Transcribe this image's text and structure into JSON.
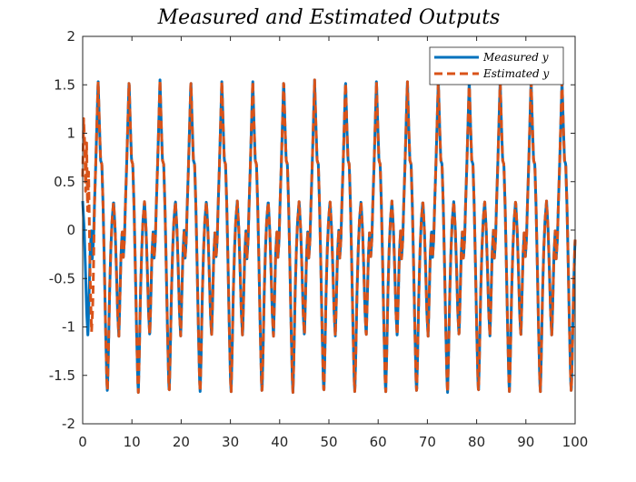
{
  "chart_data": {
    "type": "line",
    "title": "Measured and Estimated Outputs",
    "xlabel": "",
    "ylabel": "",
    "xlim": [
      0,
      100
    ],
    "ylim": [
      -2,
      2
    ],
    "xticks": [
      0,
      10,
      20,
      30,
      40,
      50,
      60,
      70,
      80,
      90,
      100
    ],
    "yticks": [
      2,
      1.5,
      1,
      0.5,
      0,
      -0.5,
      -1,
      -1.5,
      -2
    ],
    "x_tick_labels": [
      "0",
      "10",
      "20",
      "30",
      "40",
      "50",
      "60",
      "70",
      "80",
      "90",
      "100"
    ],
    "y_tick_labels": [
      "2",
      "1.5",
      "1",
      "0.5",
      "0",
      "-0.5",
      "-1",
      "-1.5",
      "-2"
    ],
    "grid": false,
    "legend_position": "top-right",
    "signal_model": {
      "period": 6.28,
      "cycle_shape": [
        [
          0.0,
          0.3
        ],
        [
          0.05,
          0.0
        ],
        [
          0.09,
          -0.4
        ],
        [
          0.13,
          -0.85
        ],
        [
          0.17,
          -1.1
        ],
        [
          0.2,
          -0.75
        ],
        [
          0.24,
          -0.25
        ],
        [
          0.28,
          0.0
        ],
        [
          0.31,
          -0.3
        ],
        [
          0.35,
          -0.1
        ],
        [
          0.38,
          0.25
        ],
        [
          0.42,
          0.65
        ],
        [
          0.46,
          1.1
        ],
        [
          0.5,
          1.55
        ],
        [
          0.54,
          1.1
        ],
        [
          0.58,
          0.72
        ],
        [
          0.62,
          0.68
        ],
        [
          0.66,
          0.25
        ],
        [
          0.7,
          -0.35
        ],
        [
          0.74,
          -1.0
        ],
        [
          0.78,
          -1.55
        ],
        [
          0.8,
          -1.68
        ],
        [
          0.83,
          -1.3
        ],
        [
          0.87,
          -0.65
        ],
        [
          0.91,
          -0.2
        ],
        [
          0.95,
          0.1
        ],
        [
          1.0,
          0.3
        ]
      ]
    },
    "series": [
      {
        "name": "Measured y",
        "color": "#0072BD",
        "line_style": "solid",
        "x_range": [
          0,
          100
        ]
      },
      {
        "name": "Estimated y",
        "color": "#D95319",
        "line_style": "dashed",
        "x_range": [
          0,
          100
        ],
        "initial_transient": [
          [
            0.0,
            0.55
          ],
          [
            0.2,
            1.15
          ],
          [
            0.4,
            0.9
          ],
          [
            0.6,
            0.4
          ],
          [
            0.8,
            0.9
          ],
          [
            1.0,
            0.2
          ],
          [
            1.2,
            0.6
          ],
          [
            1.5,
            -0.45
          ],
          [
            1.8,
            -1.05
          ],
          [
            2.1,
            -1.15
          ],
          [
            2.4,
            -0.55
          ]
        ]
      }
    ]
  }
}
